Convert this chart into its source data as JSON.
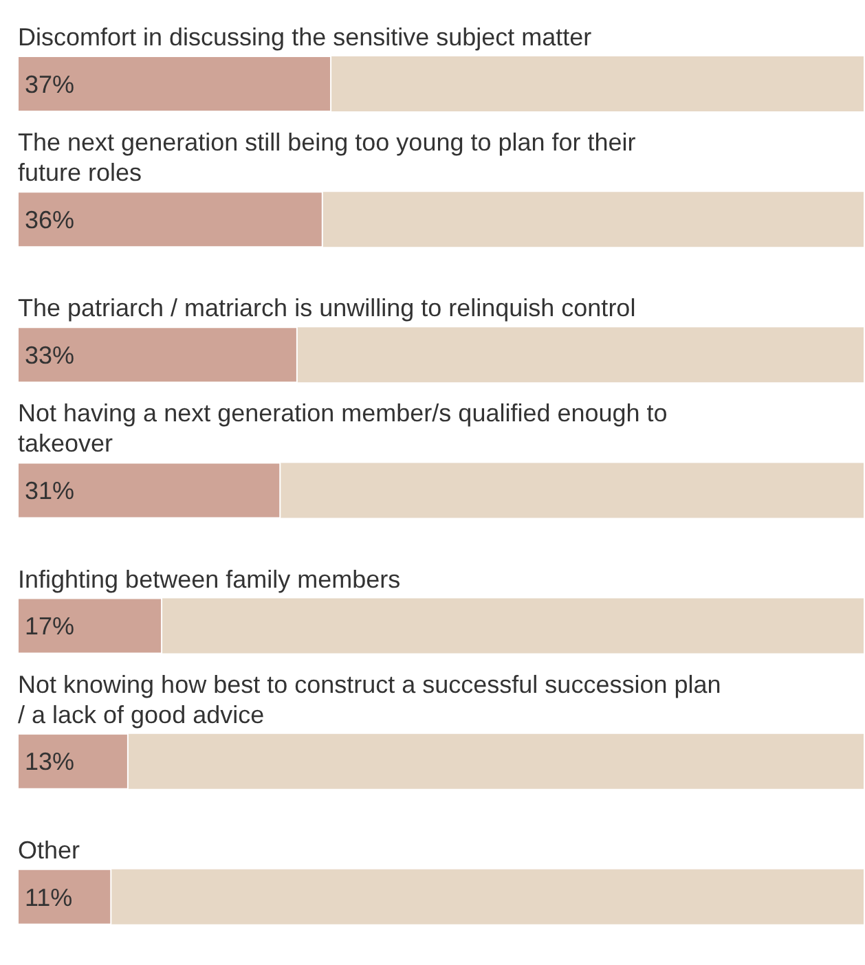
{
  "chart_data": {
    "type": "bar",
    "orientation": "horizontal",
    "categories": [
      "Discomfort in discussing the sensitive subject matter",
      "The next generation still being too young to plan for their future roles",
      "The patriarch / matriarch is unwilling to relinquish control",
      "Not having a next generation member/s qualified enough to takeover",
      "Infighting between family members",
      "Not knowing how best to construct a successful succession plan / a lack of good advice",
      "Other"
    ],
    "values": [
      37,
      36,
      33,
      31,
      17,
      13,
      11
    ],
    "value_labels": [
      "37%",
      "36%",
      "33%",
      "31%",
      "17%",
      "13%",
      "11%"
    ],
    "color": "#cfa497",
    "xlim": [
      0,
      100
    ],
    "tick_labels": false
  }
}
